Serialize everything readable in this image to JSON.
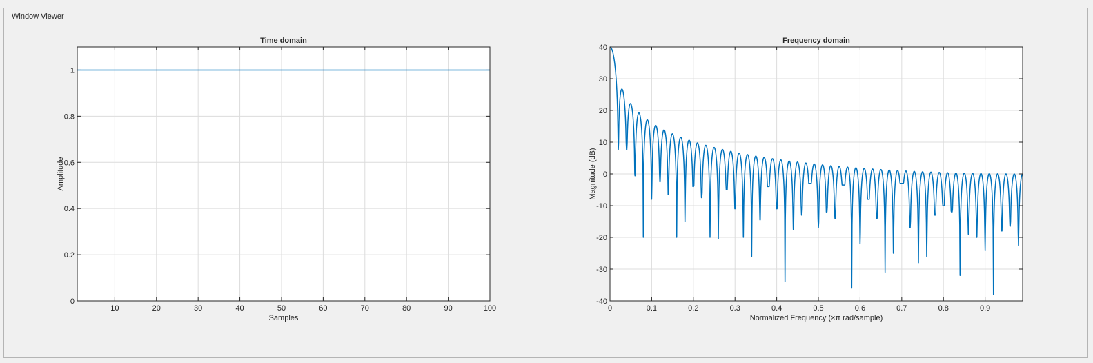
{
  "panel": {
    "title": "Window Viewer"
  },
  "chart_data": [
    {
      "type": "line",
      "title": "Time domain",
      "xlabel": "Samples",
      "ylabel": "Amplitude",
      "xlim": [
        1,
        100
      ],
      "ylim": [
        0,
        1.1
      ],
      "xticks": [
        10,
        20,
        30,
        40,
        50,
        60,
        70,
        80,
        90,
        100
      ],
      "xtick_labels": [
        "10",
        "20",
        "30",
        "40",
        "50",
        "60",
        "70",
        "80",
        "90",
        "100"
      ],
      "yticks": [
        0,
        0.2,
        0.4,
        0.6,
        0.8,
        1
      ],
      "ytick_labels": [
        "0",
        "0.2",
        "0.4",
        "0.6",
        "0.8",
        "1"
      ],
      "grid": true,
      "line_color": "#0072bd",
      "series": [
        {
          "x": [
            1,
            100
          ],
          "y": [
            1,
            1
          ]
        }
      ]
    },
    {
      "type": "line",
      "title": "Frequency domain",
      "xlabel": "Normalized Frequency  (×π rad/sample)",
      "ylabel": "Magnitude (dB)",
      "xlim": [
        0,
        0.99
      ],
      "ylim": [
        -40,
        40
      ],
      "xticks": [
        0,
        0.1,
        0.2,
        0.3,
        0.4,
        0.5,
        0.6,
        0.7,
        0.8,
        0.9
      ],
      "xtick_labels": [
        "0",
        "0.1",
        "0.2",
        "0.3",
        "0.4",
        "0.5",
        "0.6",
        "0.7",
        "0.8",
        "0.9"
      ],
      "yticks": [
        -40,
        -30,
        -20,
        -10,
        0,
        10,
        20,
        30,
        40
      ],
      "ytick_labels": [
        "-40",
        "-30",
        "-20",
        "-10",
        "0",
        "10",
        "20",
        "30",
        "40"
      ],
      "grid": true,
      "line_color": "#0072bd",
      "window_length": 100,
      "nulls": [
        [
          0.02,
          7.7
        ],
        [
          0.04,
          7.6
        ],
        [
          0.06,
          -0.6
        ],
        [
          0.08,
          -20
        ],
        [
          0.1,
          -8
        ],
        [
          0.12,
          -2.5
        ],
        [
          0.14,
          -6.5
        ],
        [
          0.16,
          -20
        ],
        [
          0.18,
          -15
        ],
        [
          0.2,
          -4
        ],
        [
          0.22,
          -7.5
        ],
        [
          0.24,
          -20
        ],
        [
          0.26,
          -20.5
        ],
        [
          0.28,
          -5
        ],
        [
          0.3,
          -11
        ],
        [
          0.32,
          -20
        ],
        [
          0.34,
          -26
        ],
        [
          0.36,
          -14.5
        ],
        [
          0.38,
          -4
        ],
        [
          0.4,
          -11
        ],
        [
          0.42,
          -34
        ],
        [
          0.44,
          -17.5
        ],
        [
          0.46,
          -13
        ],
        [
          0.48,
          -3
        ],
        [
          0.5,
          -17
        ],
        [
          0.52,
          -12
        ],
        [
          0.54,
          -14
        ],
        [
          0.56,
          -3.5
        ],
        [
          0.58,
          -36
        ],
        [
          0.6,
          -22
        ],
        [
          0.62,
          -8
        ],
        [
          0.64,
          -14
        ],
        [
          0.66,
          -31
        ],
        [
          0.68,
          -25
        ],
        [
          0.7,
          -3
        ],
        [
          0.72,
          -17
        ],
        [
          0.74,
          -28
        ],
        [
          0.76,
          -26
        ],
        [
          0.78,
          -13
        ],
        [
          0.8,
          -10
        ],
        [
          0.82,
          -12
        ],
        [
          0.84,
          -32
        ],
        [
          0.86,
          -19
        ],
        [
          0.88,
          -20
        ],
        [
          0.9,
          -24
        ],
        [
          0.92,
          -38
        ],
        [
          0.94,
          -18
        ],
        [
          0.96,
          -16.5
        ],
        [
          0.98,
          -22.5
        ]
      ]
    }
  ]
}
